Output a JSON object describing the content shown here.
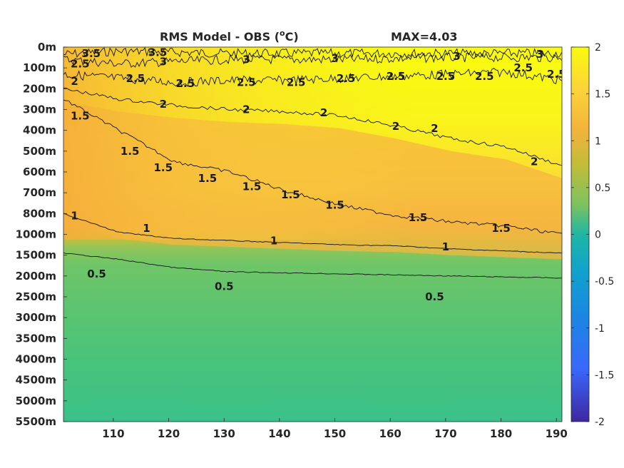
{
  "chart_data": {
    "type": "heatmap",
    "title": "RMS Model - OBS (",
    "title_superscript": "o",
    "title_suffix": "C)",
    "max_label": "MAX=4.03",
    "x_ticks": [
      110,
      120,
      130,
      140,
      150,
      160,
      170,
      180,
      190
    ],
    "xlim": [
      101,
      191
    ],
    "y_tick_labels": [
      "0m",
      "100m",
      "200m",
      "300m",
      "400m",
      "500m",
      "600m",
      "700m",
      "800m",
      "1000m",
      "1500m",
      "2000m",
      "2500m",
      "3000m",
      "3500m",
      "4000m",
      "4500m",
      "5000m",
      "5500m"
    ],
    "colorbar": {
      "ticks": [
        "2",
        "1.5",
        "1",
        "0.5",
        "0",
        "-0.5",
        "-1",
        "-1.5",
        "-2"
      ],
      "range": [
        -2,
        2
      ],
      "colormap": "parula"
    },
    "contour_levels": [
      {
        "level": "3.5",
        "depth_index": [
          0.35,
          0.2,
          0.25,
          0.3,
          0.3,
          0.3,
          0.3,
          0.3,
          0.3,
          0.3
        ]
      },
      {
        "level": "3",
        "depth_index": [
          0.6,
          0.8,
          0.7,
          0.6,
          0.6,
          0.6,
          0.55,
          0.5,
          0.5,
          0.5
        ]
      },
      {
        "level": "2.5",
        "depth_index": [
          1.3,
          1.5,
          1.7,
          1.6,
          1.6,
          1.5,
          1.4,
          1.3,
          1.2,
          1.6
        ]
      },
      {
        "level": "2",
        "depth_index": [
          2.0,
          2.5,
          2.8,
          3.0,
          3.1,
          3.3,
          3.8,
          4.4,
          4.8,
          5.7
        ]
      },
      {
        "level": "1.5",
        "depth_index": [
          2.5,
          4.0,
          5.5,
          6.0,
          6.9,
          7.6,
          8.1,
          8.4,
          8.6,
          9.0
        ]
      },
      {
        "level": "1",
        "depth_index": [
          8.0,
          8.9,
          9.2,
          9.3,
          9.4,
          9.5,
          9.55,
          9.7,
          9.8,
          9.9
        ]
      },
      {
        "level": "0.5",
        "depth_index": [
          9.9,
          10.2,
          10.6,
          10.8,
          10.85,
          10.9,
          10.95,
          11.0,
          11.05,
          11.1
        ]
      }
    ],
    "contour_label_positions": [
      {
        "text": "3.5",
        "x": 106,
        "d": 0.3
      },
      {
        "text": "3.5",
        "x": 118,
        "d": 0.25
      },
      {
        "text": "3",
        "x": 119,
        "d": 0.7
      },
      {
        "text": "3",
        "x": 134,
        "d": 0.6
      },
      {
        "text": "3",
        "x": 150,
        "d": 0.55
      },
      {
        "text": "3",
        "x": 172,
        "d": 0.45
      },
      {
        "text": "3",
        "x": 187,
        "d": 0.35
      },
      {
        "text": "2.5",
        "x": 104,
        "d": 0.8
      },
      {
        "text": "2.5",
        "x": 114,
        "d": 1.5
      },
      {
        "text": "2.5",
        "x": 123,
        "d": 1.75
      },
      {
        "text": "2.5",
        "x": 134,
        "d": 1.7
      },
      {
        "text": "2.5",
        "x": 143,
        "d": 1.7
      },
      {
        "text": "2.5",
        "x": 152,
        "d": 1.5
      },
      {
        "text": "2.5",
        "x": 161,
        "d": 1.4
      },
      {
        "text": "2.5",
        "x": 170,
        "d": 1.4
      },
      {
        "text": "2.5",
        "x": 177,
        "d": 1.4
      },
      {
        "text": "2.5",
        "x": 184,
        "d": 1.0
      },
      {
        "text": "2.5",
        "x": 190,
        "d": 1.3
      },
      {
        "text": "2",
        "x": 103,
        "d": 1.65
      },
      {
        "text": "2",
        "x": 119,
        "d": 2.75
      },
      {
        "text": "2",
        "x": 134,
        "d": 3.0
      },
      {
        "text": "2",
        "x": 148,
        "d": 3.15
      },
      {
        "text": "2",
        "x": 161,
        "d": 3.8
      },
      {
        "text": "2",
        "x": 168,
        "d": 3.9
      },
      {
        "text": "2",
        "x": 186,
        "d": 5.5
      },
      {
        "text": "1.5",
        "x": 104,
        "d": 3.3
      },
      {
        "text": "1.5",
        "x": 113,
        "d": 5.0
      },
      {
        "text": "1.5",
        "x": 119,
        "d": 5.8
      },
      {
        "text": "1.5",
        "x": 127,
        "d": 6.3
      },
      {
        "text": "1.5",
        "x": 135,
        "d": 6.7
      },
      {
        "text": "1.5",
        "x": 142,
        "d": 7.1
      },
      {
        "text": "1.5",
        "x": 150,
        "d": 7.6
      },
      {
        "text": "1.5",
        "x": 165,
        "d": 8.2
      },
      {
        "text": "1.5",
        "x": 180,
        "d": 8.7
      },
      {
        "text": "1",
        "x": 103,
        "d": 8.1
      },
      {
        "text": "1",
        "x": 116,
        "d": 8.7
      },
      {
        "text": "1",
        "x": 139,
        "d": 9.3
      },
      {
        "text": "1",
        "x": 170,
        "d": 9.6
      },
      {
        "text": "0.5",
        "x": 107,
        "d": 10.9
      },
      {
        "text": "0.5",
        "x": 130,
        "d": 11.5
      },
      {
        "text": "0.5",
        "x": 168,
        "d": 12.0
      }
    ]
  }
}
